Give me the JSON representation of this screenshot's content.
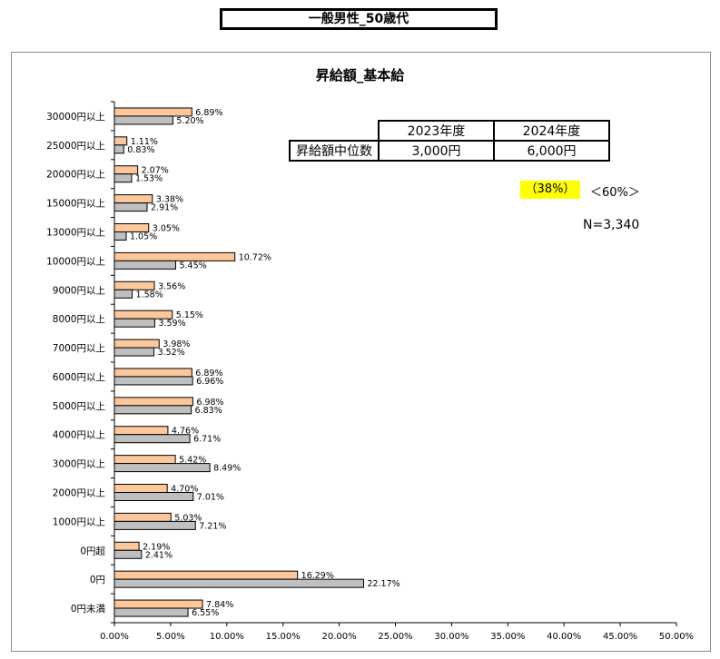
{
  "page_title": "一般男性_50歳代",
  "median_table": {
    "headers": [
      "",
      "2023年度",
      "2024年度"
    ],
    "row_label": "昇給額中位数",
    "values": [
      "3,000円",
      "6,000円"
    ]
  },
  "badge_text": "（38%）",
  "note_text": "＜60%＞",
  "n_text": "N=3,340",
  "colors": {
    "series_2024": "#fcc89b",
    "series_2023": "#bfbfbf",
    "badge_bg": "#ffff00"
  },
  "chart_data": {
    "type": "bar",
    "orientation": "horizontal",
    "title": "昇給額_基本給",
    "categories": [
      "30000円以上",
      "25000円以上",
      "20000円以上",
      "15000円以上",
      "13000円以上",
      "10000円以上",
      "9000円以上",
      "8000円以上",
      "7000円以上",
      "6000円以上",
      "5000円以上",
      "4000円以上",
      "3000円以上",
      "2000円以上",
      "1000円以上",
      "0円超",
      "0円",
      "0円未満"
    ],
    "series": [
      {
        "values": [
          6.89,
          1.11,
          2.07,
          3.38,
          3.05,
          10.72,
          3.56,
          5.15,
          3.98,
          6.89,
          6.98,
          4.76,
          5.42,
          4.7,
          5.03,
          2.19,
          16.29,
          7.84
        ],
        "labels": [
          "6.89%",
          "1.11%",
          "2.07%",
          "3.38%",
          "3.05%",
          "10.72%",
          "3.56%",
          "5.15%",
          "3.98%",
          "6.89%",
          "6.98%",
          "4.76%",
          "5.42%",
          "4.70%",
          "5.03%",
          "2.19%",
          "16.29%",
          "7.84%"
        ]
      },
      {
        "values": [
          5.2,
          0.83,
          1.53,
          2.91,
          1.05,
          5.45,
          1.58,
          3.59,
          3.52,
          6.96,
          6.83,
          6.71,
          8.49,
          7.01,
          7.21,
          2.41,
          22.17,
          6.55
        ],
        "labels": [
          "5.20%",
          "0.83%",
          "1.53%",
          "2.91%",
          "1.05%",
          "5.45%",
          "1.58%",
          "3.59%",
          "3.52%",
          "6.96%",
          "6.83%",
          "6.71%",
          "8.49%",
          "7.01%",
          "7.21%",
          "2.41%",
          "22.17%",
          "6.55%"
        ]
      }
    ],
    "xlim": [
      0,
      50
    ],
    "xticks": [
      "0.00%",
      "5.00%",
      "10.00%",
      "15.00%",
      "20.00%",
      "25.00%",
      "30.00%",
      "35.00%",
      "40.00%",
      "45.00%",
      "50.00%"
    ],
    "grid": false
  }
}
